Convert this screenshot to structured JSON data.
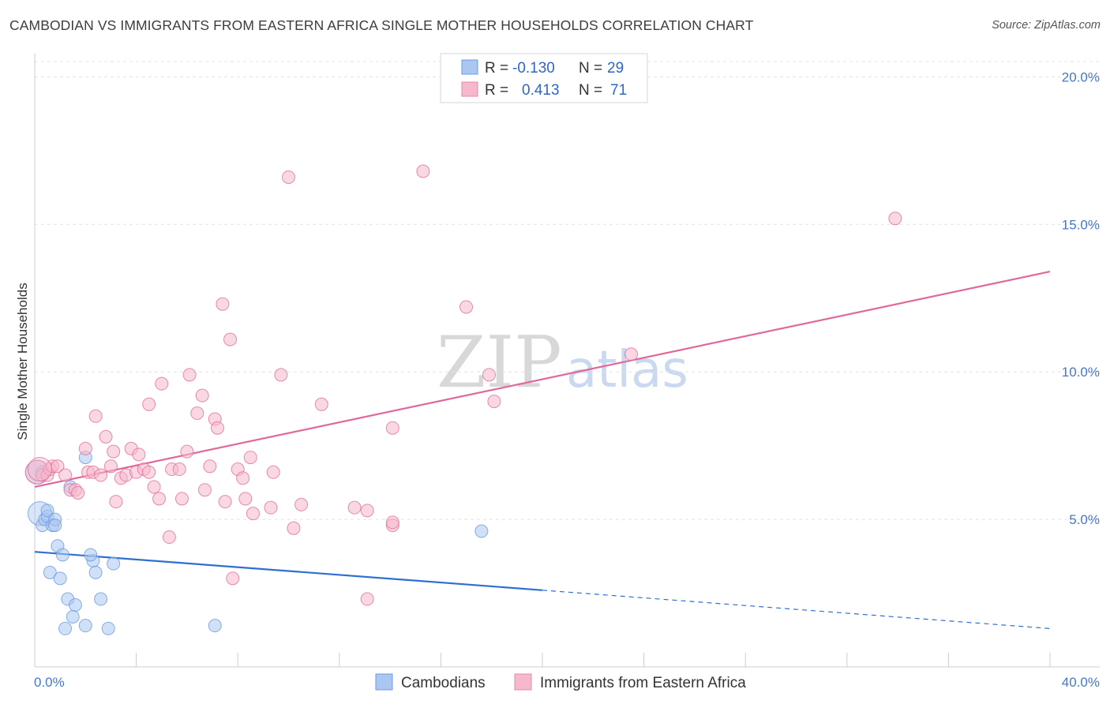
{
  "header": {
    "title": "CAMBODIAN VS IMMIGRANTS FROM EASTERN AFRICA SINGLE MOTHER HOUSEHOLDS CORRELATION CHART",
    "source": "Source: ZipAtlas.com"
  },
  "watermark": {
    "zip": "ZIP",
    "atlas": "atlas"
  },
  "legend_top": {
    "rows": [
      {
        "r_label": "R =",
        "r_value": "-0.130",
        "n_label": "N =",
        "n_value": "29",
        "color": "#a9c7f0"
      },
      {
        "r_label": "R =",
        "r_value": "0.413",
        "n_label": "N =",
        "n_value": "71",
        "color": "#f5b8cc"
      }
    ]
  },
  "legend_bottom": {
    "items": [
      {
        "label": "Cambodians",
        "color": "#a9c7f0"
      },
      {
        "label": "Immigrants from Eastern Africa",
        "color": "#f5b8cc"
      }
    ]
  },
  "chart_data": {
    "type": "scatter",
    "title": "CAMBODIAN VS IMMIGRANTS FROM EASTERN AFRICA SINGLE MOTHER HOUSEHOLDS CORRELATION CHART",
    "xlabel": "",
    "ylabel": "Single Mother Households",
    "xlim": [
      0,
      40
    ],
    "ylim": [
      0,
      21
    ],
    "x_tick_labels": [
      "0.0%",
      "40.0%"
    ],
    "y_ticks": [
      5,
      10,
      15,
      20
    ],
    "y_tick_labels": [
      "5.0%",
      "10.0%",
      "15.0%",
      "20.0%"
    ],
    "grid": true,
    "legend_position": "top-center",
    "series": [
      {
        "name": "Cambodians",
        "color": "#6a9be0",
        "fill": "#a9c7f0",
        "trend": {
          "x0": 0,
          "y0": 3.9,
          "x1": 20,
          "y1": 2.6,
          "dashed_to_x": 40,
          "dashed_to_y": 1.3,
          "color": "#2f6fcf"
        },
        "points": [
          [
            0.1,
            6.6
          ],
          [
            0.2,
            5.2
          ],
          [
            0.3,
            4.8
          ],
          [
            0.4,
            5.0
          ],
          [
            0.5,
            5.1
          ],
          [
            0.5,
            5.3
          ],
          [
            0.7,
            4.8
          ],
          [
            0.8,
            5.0
          ],
          [
            0.8,
            4.8
          ],
          [
            0.9,
            4.1
          ],
          [
            1.1,
            3.8
          ],
          [
            0.6,
            3.2
          ],
          [
            1.0,
            3.0
          ],
          [
            1.3,
            2.3
          ],
          [
            1.5,
            1.7
          ],
          [
            1.6,
            2.1
          ],
          [
            1.2,
            1.3
          ],
          [
            2.0,
            1.4
          ],
          [
            2.3,
            3.6
          ],
          [
            2.2,
            3.8
          ],
          [
            2.4,
            3.2
          ],
          [
            2.6,
            2.3
          ],
          [
            2.9,
            1.3
          ],
          [
            3.1,
            3.5
          ],
          [
            1.4,
            6.1
          ],
          [
            2.0,
            7.1
          ],
          [
            7.1,
            1.4
          ],
          [
            17.6,
            4.6
          ],
          [
            0.3,
            6.6
          ]
        ]
      },
      {
        "name": "Immigrants from Eastern Africa",
        "color": "#e26f98",
        "fill": "#f5b8cc",
        "trend": {
          "x0": 0,
          "y0": 6.1,
          "x1": 40,
          "y1": 13.4,
          "color": "#e0689a"
        },
        "points": [
          [
            0.1,
            6.6
          ],
          [
            0.3,
            6.5
          ],
          [
            0.5,
            6.5
          ],
          [
            0.6,
            6.7
          ],
          [
            0.7,
            6.8
          ],
          [
            0.9,
            6.8
          ],
          [
            1.2,
            6.5
          ],
          [
            1.4,
            6.0
          ],
          [
            1.6,
            6.0
          ],
          [
            1.7,
            5.9
          ],
          [
            2.0,
            7.4
          ],
          [
            2.1,
            6.6
          ],
          [
            2.3,
            6.6
          ],
          [
            2.4,
            8.5
          ],
          [
            2.6,
            6.5
          ],
          [
            2.8,
            7.8
          ],
          [
            3.0,
            6.8
          ],
          [
            3.1,
            7.3
          ],
          [
            3.2,
            5.6
          ],
          [
            3.4,
            6.4
          ],
          [
            3.6,
            6.5
          ],
          [
            3.8,
            7.4
          ],
          [
            4.0,
            6.6
          ],
          [
            4.1,
            7.2
          ],
          [
            4.3,
            6.7
          ],
          [
            4.5,
            6.6
          ],
          [
            4.5,
            8.9
          ],
          [
            4.7,
            6.1
          ],
          [
            4.9,
            5.7
          ],
          [
            5.0,
            9.6
          ],
          [
            5.3,
            4.4
          ],
          [
            5.4,
            6.7
          ],
          [
            5.7,
            6.7
          ],
          [
            5.8,
            5.7
          ],
          [
            6.0,
            7.3
          ],
          [
            6.1,
            9.9
          ],
          [
            6.4,
            8.6
          ],
          [
            6.6,
            9.2
          ],
          [
            6.7,
            6.0
          ],
          [
            6.9,
            6.8
          ],
          [
            7.1,
            8.4
          ],
          [
            7.2,
            8.1
          ],
          [
            7.4,
            12.3
          ],
          [
            7.5,
            5.6
          ],
          [
            7.7,
            11.1
          ],
          [
            7.8,
            3.0
          ],
          [
            8.0,
            6.7
          ],
          [
            8.2,
            6.4
          ],
          [
            8.3,
            5.7
          ],
          [
            8.5,
            7.1
          ],
          [
            8.6,
            5.2
          ],
          [
            9.3,
            5.4
          ],
          [
            9.4,
            6.6
          ],
          [
            9.7,
            9.9
          ],
          [
            10.0,
            16.6
          ],
          [
            10.2,
            4.7
          ],
          [
            10.5,
            5.5
          ],
          [
            11.3,
            8.9
          ],
          [
            12.6,
            5.4
          ],
          [
            13.1,
            5.3
          ],
          [
            13.1,
            2.3
          ],
          [
            14.1,
            8.1
          ],
          [
            14.1,
            4.8
          ],
          [
            14.1,
            4.9
          ],
          [
            15.3,
            16.8
          ],
          [
            17.0,
            12.2
          ],
          [
            17.9,
            9.9
          ],
          [
            18.1,
            9.0
          ],
          [
            23.5,
            10.6
          ],
          [
            33.9,
            15.2
          ],
          [
            0.2,
            6.7
          ]
        ]
      }
    ]
  }
}
